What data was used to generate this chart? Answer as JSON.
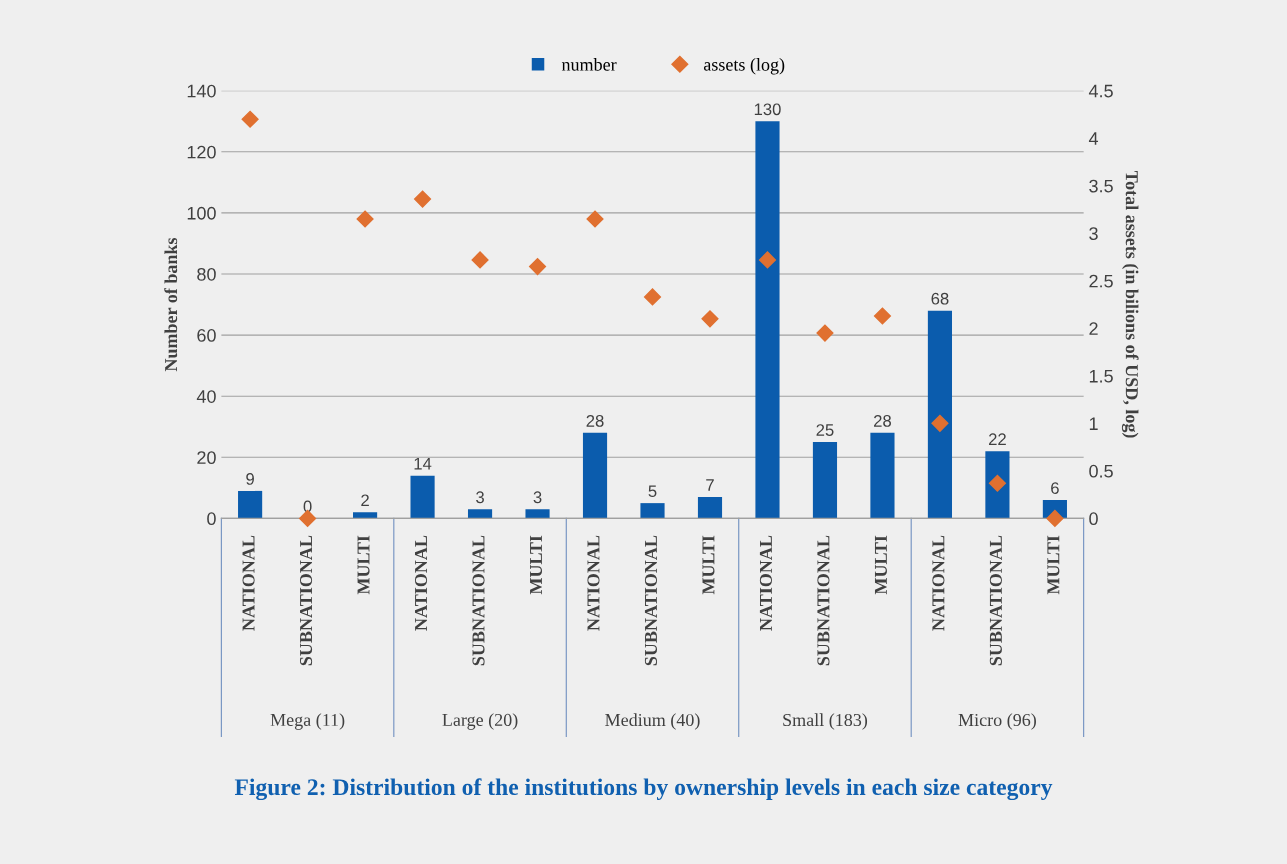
{
  "chart_data": {
    "type": "bar",
    "title": "Figure 2: Distribution of the institutions by ownership levels in each size category",
    "categories": [
      "NATIONAL",
      "SUBNATIONAL",
      "MULTI",
      "NATIONAL",
      "SUBNATIONAL",
      "MULTI",
      "NATIONAL",
      "SUBNATIONAL",
      "MULTI",
      "NATIONAL",
      "SUBNATIONAL",
      "MULTI",
      "NATIONAL",
      "SUBNATIONAL",
      "MULTI"
    ],
    "annotations": [
      "Mega (11)",
      "Large (20)",
      "Medium (40)",
      "Small (183)",
      "Micro (96)"
    ],
    "ylabel": "Number of banks",
    "y2label": "Total assets (in bilions of USD, log)",
    "series": [
      {
        "name": "number",
        "color": "#0b5cad",
        "values": [
          9,
          0,
          2,
          14,
          3,
          3,
          28,
          5,
          7,
          130,
          25,
          28,
          68,
          22,
          6
        ],
        "value_labels": [
          "9",
          "0",
          "2",
          "14",
          "3",
          "3",
          "28",
          "5",
          "7",
          "130",
          "25",
          "28",
          "68",
          "22",
          "6"
        ]
      },
      {
        "name": "assets (log)",
        "type": "scatter",
        "axis": "y2",
        "marker": "diamond",
        "color": "#e07030",
        "values": [
          4.2,
          0,
          3.15,
          3.36,
          2.72,
          2.65,
          3.15,
          2.33,
          2.1,
          2.72,
          1.95,
          2.13,
          1.0,
          0.37,
          0
        ]
      }
    ],
    "ylim": [
      0,
      140
    ],
    "yticks": [
      0,
      20,
      40,
      60,
      80,
      100,
      120,
      140
    ],
    "y2lim": [
      0,
      4.5
    ],
    "y2ticks": [
      0,
      0.5,
      1,
      1.5,
      2,
      2.5,
      3,
      3.5,
      4,
      4.5
    ],
    "grid": "y",
    "legend": "top"
  }
}
